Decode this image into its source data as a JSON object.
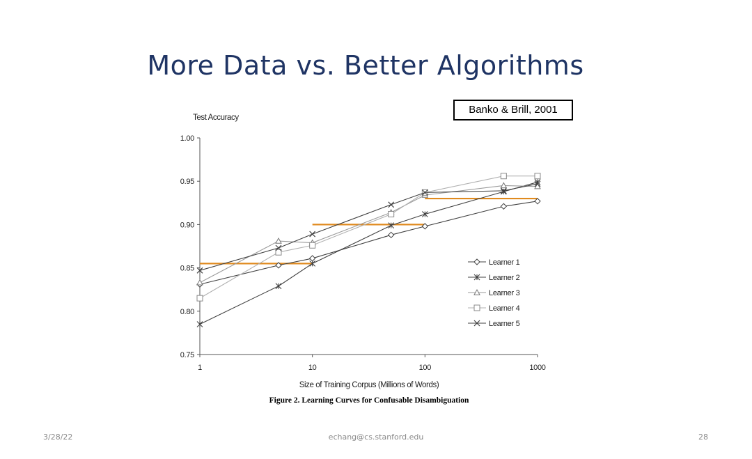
{
  "slide": {
    "title": "More Data vs. Better Algorithms",
    "citation": "Banko & Brill, 2001",
    "caption": "Figure 2. Learning Curves for Confusable Disambiguation",
    "footer": {
      "date": "3/28/22",
      "email": "echang@cs.stanford.edu",
      "page": "28"
    }
  },
  "chart_data": {
    "type": "line",
    "title": "",
    "xlabel": "Size of Training Corpus (Millions of Words)",
    "ylabel": "Test Accuracy",
    "x_scale": "log",
    "xlim": [
      1,
      1000
    ],
    "ylim": [
      0.75,
      1.0
    ],
    "x_ticks": [
      1,
      10,
      100,
      1000
    ],
    "x_tick_labels": [
      "1",
      "10",
      "100",
      "1000"
    ],
    "y_ticks": [
      0.75,
      0.8,
      0.85,
      0.9,
      0.95,
      1.0
    ],
    "y_tick_labels": [
      "0.75",
      "0.80",
      "0.85",
      "0.90",
      "0.95",
      "1.00"
    ],
    "grid": false,
    "legend_position": "right",
    "line_color": "#404040",
    "x": [
      1,
      5,
      10,
      50,
      100,
      500,
      1000
    ],
    "series": [
      {
        "name": "Learner 1",
        "marker": "diamond",
        "values": [
          0.831,
          0.853,
          0.861,
          0.888,
          0.898,
          0.921,
          0.927
        ]
      },
      {
        "name": "Learner 2",
        "marker": "star",
        "values": [
          0.785,
          0.829,
          0.855,
          0.899,
          0.912,
          0.938,
          0.949
        ]
      },
      {
        "name": "Learner 3",
        "marker": "triangle",
        "values": [
          0.833,
          0.881,
          0.879,
          0.914,
          0.934,
          0.945,
          0.944
        ]
      },
      {
        "name": "Learner 4",
        "marker": "square",
        "values": [
          0.815,
          0.868,
          0.876,
          0.912,
          0.937,
          0.956,
          0.956
        ]
      },
      {
        "name": "Learner 5",
        "marker": "x",
        "values": [
          0.847,
          0.873,
          0.889,
          0.923,
          0.937,
          0.939,
          0.947
        ]
      }
    ],
    "reference_lines": {
      "color": "#e08a1e",
      "segments": [
        {
          "x_start": 1,
          "x_end": 10,
          "y": 0.855
        },
        {
          "x_start": 10,
          "x_end": 100,
          "y": 0.9
        },
        {
          "x_start": 100,
          "x_end": 1000,
          "y": 0.93
        }
      ]
    }
  }
}
